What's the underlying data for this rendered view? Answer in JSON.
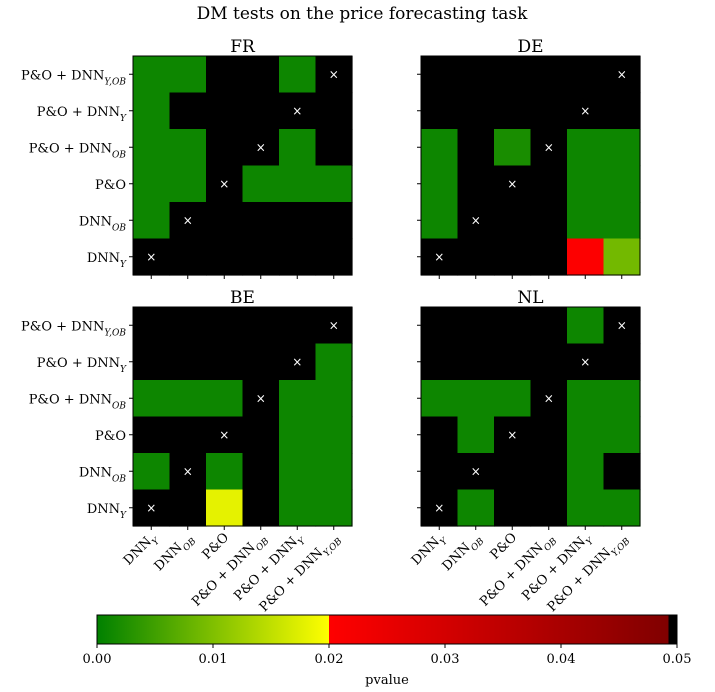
{
  "figure": {
    "title": "DM tests on the price forecasting task"
  },
  "chart_data": {
    "type": "heatmap",
    "title": "DM tests on the price forecasting task",
    "row_order": "top-to-bottom",
    "models": [
      {
        "base": "P&O + DNN",
        "sub": "Y,OB"
      },
      {
        "base": "P&O + DNN",
        "sub": "Y"
      },
      {
        "base": "P&O + DNN",
        "sub": "OB"
      },
      {
        "base": "P&O",
        "sub": ""
      },
      {
        "base": "DNN",
        "sub": "OB"
      },
      {
        "base": "DNN",
        "sub": "Y"
      }
    ],
    "cell_legend": "values are pvalues; null = black (no significance, pvalue >= 0.05); diagonal marked with ×",
    "panels": [
      {
        "title": "FR",
        "values": [
          [
            0.001,
            0.001,
            null,
            null,
            0.001,
            null
          ],
          [
            0.001,
            null,
            null,
            null,
            null,
            null
          ],
          [
            0.001,
            0.001,
            null,
            null,
            0.001,
            null
          ],
          [
            0.001,
            0.001,
            null,
            0.001,
            0.001,
            0.001
          ],
          [
            0.001,
            null,
            null,
            null,
            null,
            null
          ],
          [
            null,
            null,
            null,
            null,
            null,
            null
          ]
        ]
      },
      {
        "title": "DE",
        "values": [
          [
            null,
            null,
            null,
            null,
            null,
            null
          ],
          [
            null,
            null,
            null,
            null,
            null,
            null
          ],
          [
            0.001,
            null,
            0.002,
            null,
            0.001,
            0.001
          ],
          [
            0.001,
            null,
            null,
            null,
            0.001,
            0.001
          ],
          [
            0.001,
            null,
            null,
            null,
            0.001,
            0.001
          ],
          [
            null,
            null,
            null,
            null,
            0.0205,
            0.009
          ]
        ]
      },
      {
        "title": "BE",
        "values": [
          [
            null,
            null,
            null,
            null,
            null,
            null
          ],
          [
            null,
            null,
            null,
            null,
            null,
            0.001
          ],
          [
            0.001,
            0.001,
            0.001,
            null,
            0.001,
            0.001
          ],
          [
            null,
            null,
            null,
            null,
            0.001,
            0.001
          ],
          [
            0.001,
            null,
            0.001,
            null,
            0.001,
            0.001
          ],
          [
            null,
            null,
            0.018,
            null,
            0.001,
            0.001
          ]
        ]
      },
      {
        "title": "NL",
        "values": [
          [
            null,
            null,
            null,
            null,
            0.001,
            null
          ],
          [
            null,
            null,
            null,
            null,
            null,
            null
          ],
          [
            0.001,
            0.001,
            0.001,
            null,
            0.001,
            0.001
          ],
          [
            null,
            0.001,
            null,
            null,
            0.001,
            0.001
          ],
          [
            null,
            null,
            null,
            null,
            0.001,
            null
          ],
          [
            null,
            0.001,
            null,
            null,
            0.001,
            0.001
          ]
        ]
      }
    ],
    "colorbar": {
      "label": "pvalue",
      "range": [
        0.0,
        0.05
      ],
      "ticks": [
        "0.00",
        "0.01",
        "0.02",
        "0.03",
        "0.04",
        "0.05"
      ],
      "tick_values": [
        0.0,
        0.01,
        0.02,
        0.03,
        0.04,
        0.05
      ],
      "colors": {
        "green": "#008000",
        "yellow": "#ffff00",
        "red": "#ff0000",
        "dark_red": "#800000",
        "black": "#000000"
      }
    }
  }
}
